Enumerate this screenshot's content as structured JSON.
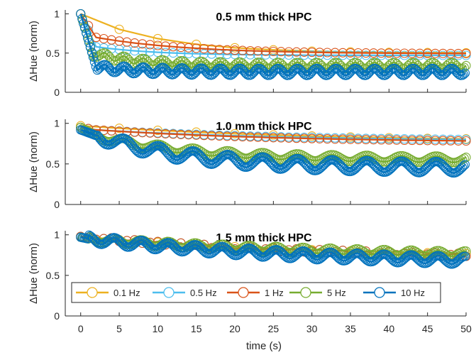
{
  "chart_data": {
    "type": "line",
    "xlabel": "time (s)",
    "x_ticks": [
      0,
      5,
      10,
      15,
      20,
      25,
      30,
      35,
      40,
      45,
      50
    ],
    "xlim": [
      -2,
      50
    ],
    "legend": {
      "placement": "bottom-center of third panel",
      "entries": [
        {
          "name": "0.1 Hz",
          "color": "#EDB120"
        },
        {
          "name": "0.5 Hz",
          "color": "#4DBEEE"
        },
        {
          "name": "1 Hz",
          "color": "#D95319"
        },
        {
          "name": "5 Hz",
          "color": "#77AC30"
        },
        {
          "name": "10 Hz",
          "color": "#0072BD"
        }
      ]
    },
    "panels": [
      {
        "title": "0.5 mm thick HPC",
        "ylabel": "ΔHue (norm)",
        "ylim": [
          0,
          1.05
        ],
        "y_ticks": [
          0,
          0.5,
          1
        ],
        "y_tick_labels": [
          "0",
          "0.5",
          "1"
        ],
        "series": [
          {
            "name": "0.1 Hz",
            "shape": {
              "start": 1.0,
              "dip_time": 0,
              "dip_value": 1.0,
              "plateau": 0.5,
              "tau": 10,
              "osc_amp": 0,
              "period": 0
            }
          },
          {
            "name": "0.5 Hz",
            "shape": {
              "start": 1.0,
              "dip_time": 2,
              "dip_value": 0.58,
              "plateau": 0.47,
              "tau": 8,
              "osc_amp": 0.01,
              "period": 2
            }
          },
          {
            "name": "1 Hz",
            "shape": {
              "start": 1.0,
              "dip_time": 2,
              "dip_value": 0.7,
              "plateau": 0.49,
              "tau": 12,
              "osc_amp": 0.015,
              "period": 1
            }
          },
          {
            "name": "5 Hz",
            "shape": {
              "start": 1.0,
              "dip_time": 1.5,
              "dip_value": 0.5,
              "plateau": 0.34,
              "tau": 6,
              "osc_amp": 0.04,
              "period": 2.5
            }
          },
          {
            "name": "10 Hz",
            "shape": {
              "start": 1.0,
              "dip_time": 2,
              "dip_value": 0.32,
              "plateau": 0.26,
              "tau": 5,
              "osc_amp": 0.045,
              "period": 2.5
            }
          }
        ]
      },
      {
        "title": "1.0 mm thick HPC",
        "ylabel": "ΔHue (norm)",
        "ylim": [
          0,
          1.05
        ],
        "y_ticks": [
          0,
          0.5,
          1
        ],
        "y_tick_labels": [
          "0",
          "0.5",
          "1"
        ],
        "series": [
          {
            "name": "0.1 Hz",
            "shape": {
              "start": 0.97,
              "dip_time": 0,
              "dip_value": 0.97,
              "plateau": 0.77,
              "tau": 30,
              "osc_amp": 0,
              "period": 0
            }
          },
          {
            "name": "0.5 Hz",
            "shape": {
              "start": 0.95,
              "dip_time": 2,
              "dip_value": 0.92,
              "plateau": 0.78,
              "tau": 25,
              "osc_amp": 0.01,
              "period": 2
            }
          },
          {
            "name": "1 Hz",
            "shape": {
              "start": 0.95,
              "dip_time": 2,
              "dip_value": 0.92,
              "plateau": 0.76,
              "tau": 25,
              "osc_amp": 0.01,
              "period": 1
            }
          },
          {
            "name": "5 Hz",
            "shape": {
              "start": 0.95,
              "dip_time": 2,
              "dip_value": 0.85,
              "plateau": 0.55,
              "tau": 12,
              "osc_amp": 0.04,
              "period": 4.5
            }
          },
          {
            "name": "10 Hz",
            "shape": {
              "start": 0.92,
              "dip_time": 2,
              "dip_value": 0.85,
              "plateau": 0.45,
              "tau": 12,
              "osc_amp": 0.07,
              "period": 4.5
            }
          }
        ]
      },
      {
        "title": "1.5 mm thick HPC",
        "ylabel": "ΔHue (norm)",
        "ylim": [
          0,
          1.05
        ],
        "y_ticks": [
          0,
          0.5,
          1
        ],
        "y_tick_labels": [
          "0",
          "0.5",
          "1"
        ],
        "series": [
          {
            "name": "0.1 Hz",
            "shape": {
              "start": 0.98,
              "dip_time": 0,
              "dip_value": 0.98,
              "plateau": 0.72,
              "tau": 30,
              "osc_amp": 0,
              "period": 0
            }
          },
          {
            "name": "0.5 Hz",
            "shape": {
              "start": 0.98,
              "dip_time": 1,
              "dip_value": 0.97,
              "plateau": 0.7,
              "tau": 30,
              "osc_amp": 0.02,
              "period": 3
            }
          },
          {
            "name": "1 Hz",
            "shape": {
              "start": 0.98,
              "dip_time": 1,
              "dip_value": 0.97,
              "plateau": 0.7,
              "tau": 30,
              "osc_amp": 0.02,
              "period": 3
            }
          },
          {
            "name": "5 Hz",
            "shape": {
              "start": 0.97,
              "dip_time": 1,
              "dip_value": 0.95,
              "plateau": 0.72,
              "tau": 30,
              "osc_amp": 0.035,
              "period": 3.5
            }
          },
          {
            "name": "10 Hz",
            "shape": {
              "start": 0.97,
              "dip_time": 1,
              "dip_value": 0.95,
              "plateau": 0.62,
              "tau": 30,
              "osc_amp": 0.05,
              "period": 3.5
            }
          }
        ]
      }
    ]
  }
}
